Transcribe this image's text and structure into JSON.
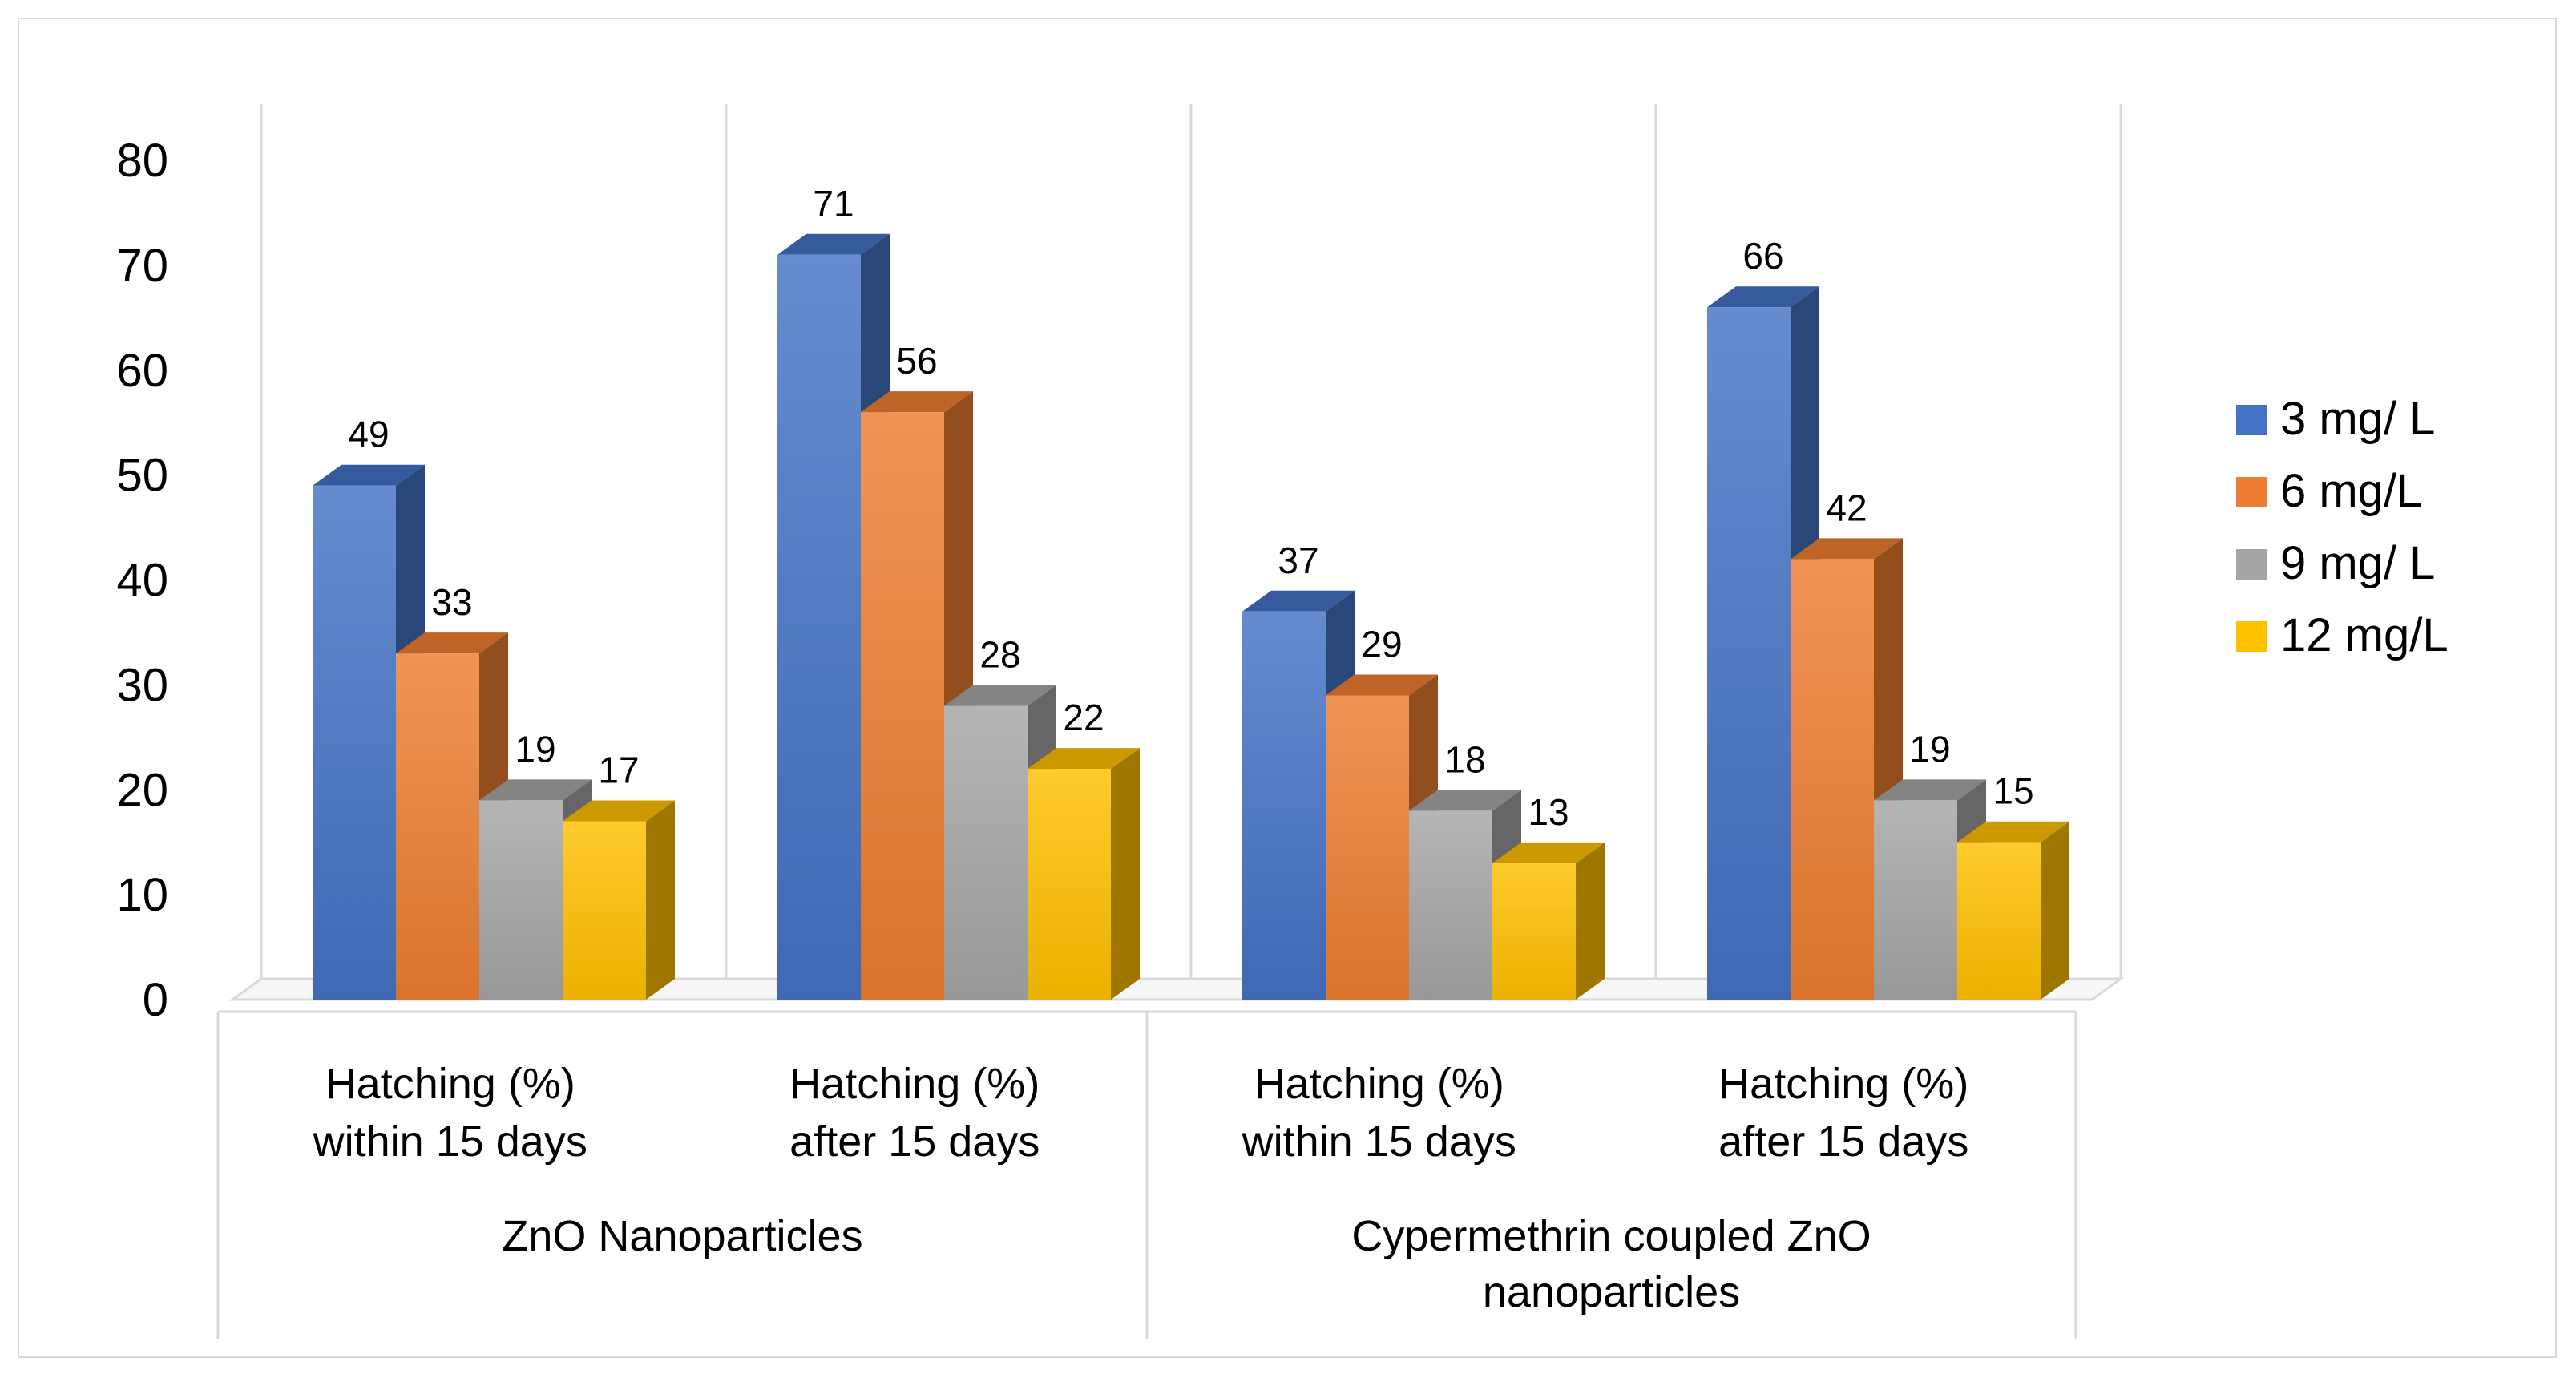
{
  "chart_data": {
    "type": "bar",
    "title": "",
    "xlabel": "",
    "ylabel": "",
    "ylim": [
      0,
      80
    ],
    "yticks": [
      0,
      10,
      20,
      30,
      40,
      50,
      60,
      70,
      80
    ],
    "groups": [
      {
        "label_lines": [
          "ZnO Nanoparticles"
        ],
        "categories": [
          0,
          1
        ]
      },
      {
        "label_lines": [
          "Cypermethrin coupled ZnO",
          "nanoparticles"
        ],
        "categories": [
          2,
          3
        ]
      }
    ],
    "categories": [
      {
        "lines": [
          "Hatching (%)",
          "within 15 days"
        ]
      },
      {
        "lines": [
          "Hatching (%)",
          "after 15 days"
        ]
      },
      {
        "lines": [
          "Hatching (%)",
          "within 15 days"
        ]
      },
      {
        "lines": [
          "Hatching (%)",
          "after 15 days"
        ]
      }
    ],
    "series": [
      {
        "name": "3 mg/ L",
        "color": "#4472c4",
        "values": [
          49,
          71,
          37,
          66
        ]
      },
      {
        "name": "6 mg/L",
        "color": "#ed7d31",
        "values": [
          33,
          56,
          29,
          42
        ]
      },
      {
        "name": "9 mg/ L",
        "color": "#a5a5a5",
        "values": [
          19,
          28,
          18,
          19
        ]
      },
      {
        "name": "12 mg/L",
        "color": "#ffc000",
        "values": [
          17,
          22,
          13,
          15
        ]
      }
    ],
    "legend_position": "right",
    "style": "3d-clustered-column",
    "grid": false
  }
}
